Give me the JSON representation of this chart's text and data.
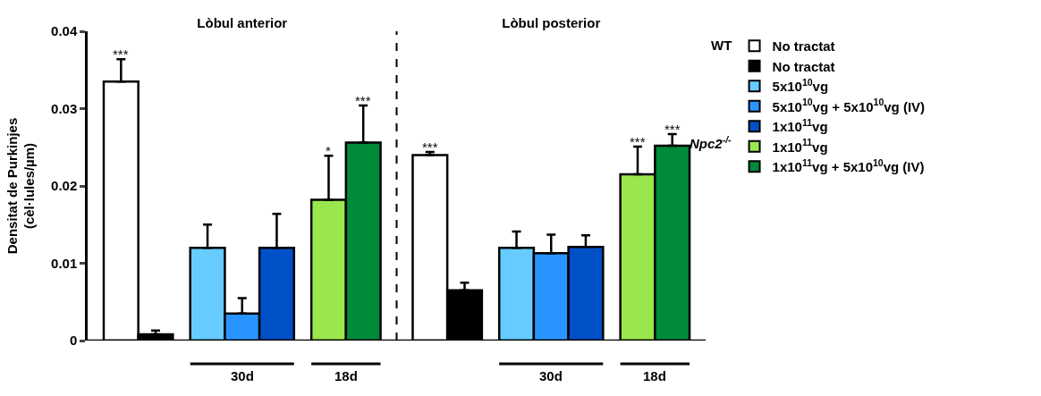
{
  "chart_data": {
    "type": "bar",
    "categories": [
      "Lòbul anterior",
      "Lòbul posterior"
    ],
    "ylabel": "Densitat de Purkinjes\n(cèl·lules/µm)",
    "ylim": [
      0,
      0.04
    ],
    "yticks": [
      0,
      0.01,
      0.02,
      0.03,
      0.04
    ],
    "legend": "right",
    "series": [
      {
        "name": "No tractat",
        "color": "#ffffff",
        "values": [
          0.0335,
          0.024
        ],
        "errors": [
          0.0029,
          0.0004
        ],
        "value_labels": [
          "***",
          "***"
        ]
      },
      {
        "name": "No tractat",
        "color": "#000000",
        "values": [
          0.0008,
          0.0065
        ],
        "errors": [
          0.0005,
          0.001
        ]
      },
      {
        "name": "5x10$^{10}$vg",
        "color": "#66ccff",
        "values": [
          0.012,
          0.012
        ],
        "errors": [
          0.003,
          0.0021
        ]
      },
      {
        "name": "5x10$^{10}$vg + 5x10$^{10}$vg (IV)",
        "color": "#2994ff",
        "values": [
          0.0035,
          0.0113
        ],
        "errors": [
          0.002,
          0.0024
        ]
      },
      {
        "name": "1x10$^{11}$vg",
        "color": "#0050c8",
        "values": [
          0.012,
          0.0121
        ],
        "errors": [
          0.0044,
          0.0015
        ]
      },
      {
        "name": "1x10$^{11}$vg",
        "color": "#99e64d",
        "values": [
          0.0182,
          0.0215
        ],
        "errors": [
          0.0057,
          0.0036
        ],
        "value_labels": [
          "*",
          "***"
        ]
      },
      {
        "name": "1x10$^{11}$vg + 5x10$^{10}$vg (IV)",
        "color": "#008a3a",
        "values": [
          0.0256,
          0.0252
        ],
        "errors": [
          0.0048,
          0.0015
        ],
        "value_labels": [
          "***",
          "***"
        ]
      }
    ],
    "annotations": [
      "30d",
      "18d",
      "WT",
      "Npc2$^{-/-}$"
    ]
  }
}
